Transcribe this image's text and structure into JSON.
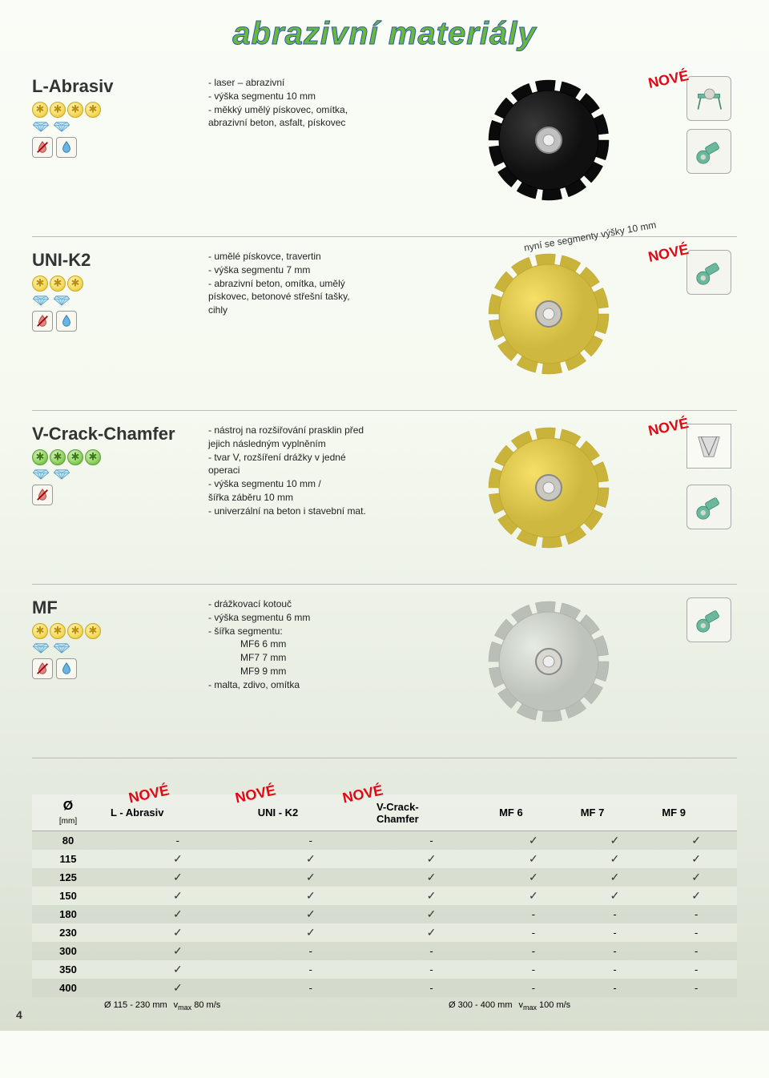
{
  "page_title": "abrazivní materiály",
  "page_number": "4",
  "nove_label": "NOVÉ",
  "products": [
    {
      "name": "L-Abrasiv",
      "stars": 4,
      "star_style": "yellow",
      "diamonds": 2,
      "usage": [
        "dry",
        "wet"
      ],
      "desc_lines": [
        "- laser – abrazivní",
        "- výška segmentu 10 mm",
        "- měkký umělý pískovec, omítka,",
        "  abrazivní beton, asfalt, pískovec"
      ],
      "disc_color": "#1a1a1a",
      "disc_center": "#c0c0c0",
      "nove": true,
      "tools": [
        "table-saw",
        "angle-grinder"
      ]
    },
    {
      "name": "UNI-K2",
      "stars": 3,
      "star_style": "yellow",
      "diamonds": 2,
      "usage": [
        "dry",
        "wet"
      ],
      "desc_lines": [
        "- umělé pískovce, travertin",
        "- výška segmentu 7 mm",
        "- abrazivní beton, omítka, umělý",
        "  pískovec, betonové střešní tašky,",
        "  cihly"
      ],
      "disc_color": "#d9c24a",
      "disc_center": "#c8c8c0",
      "nove": true,
      "note": "nyní se segmenty výšky 10 mm",
      "tools": [
        "angle-grinder"
      ]
    },
    {
      "name": "V-Crack-Chamfer",
      "stars": 4,
      "star_style": "green",
      "diamonds": 2,
      "usage": [
        "dry"
      ],
      "desc_lines": [
        "- nástroj na rozšiřování prasklin před",
        "  jejich následným vyplněním",
        "- tvar V, rozšíření drážky v jedné",
        "  operaci",
        "- výška segmentu 10 mm /",
        "  šířka záběru 10 mm",
        "- univerzální na beton i stavební mat."
      ],
      "disc_color": "#d9c24a",
      "disc_center": "#c8c8c0",
      "nove": true,
      "tools": [
        "angle-grinder"
      ],
      "special_icon": true
    },
    {
      "name": "MF",
      "stars": 4,
      "star_style": "yellow",
      "diamonds": 2,
      "usage": [
        "dry",
        "wet"
      ],
      "desc_lines": [
        "- drážkovací kotouč",
        "- výška segmentu 6 mm",
        "- šířka segmentu:"
      ],
      "desc_indent_lines": [
        "MF6      6 mm",
        "MF7      7 mm",
        "MF9      9 mm"
      ],
      "desc_after": [
        "- malta, zdivo, omítka"
      ],
      "disc_color": "#c8cdc5",
      "disc_center": "#d8d8d0",
      "nove": false,
      "tools": [
        "angle-grinder"
      ]
    }
  ],
  "table": {
    "nove_cols": [
      true,
      true,
      true,
      false,
      false,
      false
    ],
    "diam_label": "Ø",
    "diam_unit": "[mm]",
    "columns": [
      "L - Abrasiv",
      "UNI - K2",
      "V-Crack-Chamfer",
      "MF 6",
      "MF 7",
      "MF 9"
    ],
    "rows": [
      {
        "size": "80",
        "cells": [
          "-",
          "-",
          "-",
          "✓",
          "✓",
          "✓"
        ]
      },
      {
        "size": "115",
        "cells": [
          "✓",
          "✓",
          "✓",
          "✓",
          "✓",
          "✓"
        ]
      },
      {
        "size": "125",
        "cells": [
          "✓",
          "✓",
          "✓",
          "✓",
          "✓",
          "✓"
        ]
      },
      {
        "size": "150",
        "cells": [
          "✓",
          "✓",
          "✓",
          "✓",
          "✓",
          "✓"
        ]
      },
      {
        "size": "180",
        "cells": [
          "✓",
          "✓",
          "✓",
          "-",
          "-",
          "-"
        ]
      },
      {
        "size": "230",
        "cells": [
          "✓",
          "✓",
          "✓",
          "-",
          "-",
          "-"
        ]
      },
      {
        "size": "300",
        "cells": [
          "✓",
          "-",
          "-",
          "-",
          "-",
          "-"
        ]
      },
      {
        "size": "350",
        "cells": [
          "✓",
          "-",
          "-",
          "-",
          "-",
          "-"
        ]
      },
      {
        "size": "400",
        "cells": [
          "✓",
          "-",
          "-",
          "-",
          "-",
          "-"
        ]
      }
    ],
    "footer_left_label": "Ø 115 - 230 mm",
    "footer_left_val": "v max 80 m/s",
    "footer_mid_label": "Ø 300 - 400 mm",
    "footer_mid_val": "v max 100 m/s"
  },
  "colors": {
    "title_green": "#6bb83e",
    "title_stroke": "#2a5ca8",
    "nove_red": "#e30613",
    "star_yellow": "#f5d95a",
    "star_green": "#8dd060"
  }
}
